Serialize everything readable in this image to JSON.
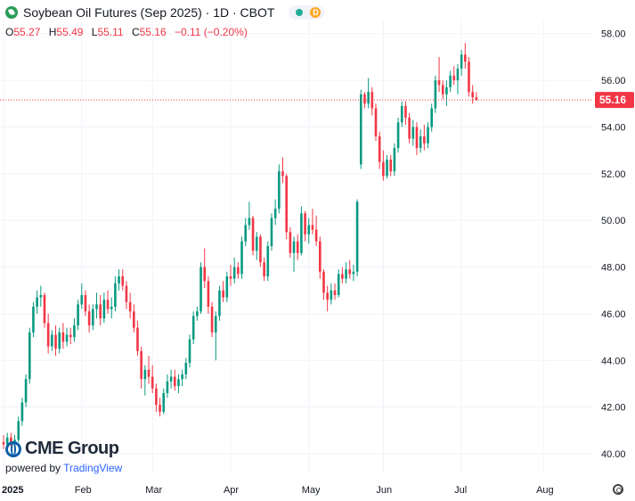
{
  "header": {
    "title": "Soybean Oil Futures (Sep 2025) · 1D · CBOT",
    "badge_d": "D",
    "ohlc": {
      "o_label": "O",
      "o_value": "55.27",
      "h_label": "H",
      "h_value": "55.49",
      "l_label": "L",
      "l_value": "55.11",
      "c_label": "C",
      "c_value": "55.16",
      "change": "−0.11 (−0.20%)"
    }
  },
  "branding": {
    "logo_text": "CME Group",
    "powered_prefix": "powered by ",
    "powered_name": "TradingView"
  },
  "colors": {
    "up": "#089981",
    "down": "#f23645",
    "last_price": "#f23645",
    "text": "#131722"
  },
  "chart_data": {
    "type": "candlestick",
    "y_range": [
      39.2,
      58.6
    ],
    "y_ticks": [
      40,
      42,
      44,
      46,
      48,
      50,
      52,
      54,
      56,
      58
    ],
    "y_tick_labels": [
      "40.00",
      "42.00",
      "44.00",
      "46.00",
      "48.00",
      "50.00",
      "52.00",
      "54.00",
      "56.00",
      "58.00"
    ],
    "x_labels": [
      {
        "label": "2025",
        "index": 0,
        "bold": true
      },
      {
        "label": "Feb",
        "index": 21
      },
      {
        "label": "Mar",
        "index": 40
      },
      {
        "label": "Apr",
        "index": 61
      },
      {
        "label": "May",
        "index": 82
      },
      {
        "label": "Jun",
        "index": 102
      },
      {
        "label": "Jul",
        "index": 123
      },
      {
        "label": "Aug",
        "index": 145
      }
    ],
    "last_price": 55.16,
    "last_price_label": "55.16",
    "candles": [
      [
        40.5,
        40.8,
        40.2,
        40.4
      ],
      [
        40.4,
        40.9,
        40.2,
        40.7
      ],
      [
        40.7,
        40.9,
        40.3,
        40.5
      ],
      [
        40.5,
        40.8,
        40.2,
        40.6
      ],
      [
        40.6,
        41.6,
        40.5,
        41.4
      ],
      [
        41.4,
        42.4,
        41.2,
        42.2
      ],
      [
        42.2,
        43.4,
        42.0,
        43.2
      ],
      [
        43.2,
        45.4,
        43.0,
        45.2
      ],
      [
        45.2,
        46.5,
        45.0,
        46.3
      ],
      [
        46.3,
        47.0,
        46.0,
        46.7
      ],
      [
        46.7,
        47.2,
        46.3,
        46.8
      ],
      [
        46.8,
        46.9,
        45.4,
        45.6
      ],
      [
        45.6,
        46.0,
        44.3,
        44.6
      ],
      [
        44.6,
        45.3,
        44.4,
        45.1
      ],
      [
        45.1,
        45.5,
        44.2,
        44.5
      ],
      [
        44.5,
        45.4,
        44.3,
        45.2
      ],
      [
        45.2,
        45.6,
        44.5,
        44.8
      ],
      [
        44.8,
        45.4,
        44.6,
        45.1
      ],
      [
        45.1,
        45.4,
        44.7,
        45.0
      ],
      [
        45.0,
        45.8,
        44.8,
        45.5
      ],
      [
        45.5,
        46.6,
        45.3,
        46.4
      ],
      [
        46.4,
        47.3,
        46.2,
        46.8
      ],
      [
        46.8,
        47.0,
        45.9,
        46.1
      ],
      [
        46.1,
        46.4,
        45.2,
        45.5
      ],
      [
        45.5,
        46.4,
        45.3,
        46.2
      ],
      [
        46.2,
        46.9,
        45.8,
        46.4
      ],
      [
        46.4,
        46.8,
        45.5,
        45.8
      ],
      [
        45.8,
        46.9,
        45.6,
        46.6
      ],
      [
        46.6,
        47.0,
        46.0,
        46.2
      ],
      [
        46.2,
        46.7,
        45.8,
        46.3
      ],
      [
        46.3,
        47.6,
        46.1,
        47.3
      ],
      [
        47.3,
        47.9,
        47.0,
        47.6
      ],
      [
        47.6,
        47.9,
        47.0,
        47.2
      ],
      [
        47.2,
        47.4,
        46.2,
        46.5
      ],
      [
        46.5,
        46.9,
        45.8,
        46.1
      ],
      [
        46.1,
        46.4,
        45.2,
        45.4
      ],
      [
        45.4,
        45.7,
        44.2,
        44.4
      ],
      [
        44.4,
        44.6,
        42.8,
        43.2
      ],
      [
        43.2,
        43.8,
        42.5,
        43.6
      ],
      [
        43.6,
        44.2,
        43.0,
        43.3
      ],
      [
        43.3,
        43.8,
        42.6,
        42.8
      ],
      [
        42.8,
        43.0,
        41.8,
        42.1
      ],
      [
        42.1,
        42.4,
        41.6,
        41.8
      ],
      [
        41.8,
        42.8,
        41.7,
        42.6
      ],
      [
        42.6,
        43.4,
        42.4,
        43.1
      ],
      [
        43.1,
        43.6,
        42.8,
        43.3
      ],
      [
        43.3,
        43.6,
        42.7,
        42.9
      ],
      [
        42.9,
        43.4,
        42.6,
        43.2
      ],
      [
        43.2,
        43.6,
        42.9,
        43.4
      ],
      [
        43.4,
        44.1,
        43.2,
        43.9
      ],
      [
        43.9,
        45.1,
        43.7,
        44.9
      ],
      [
        44.9,
        46.1,
        44.7,
        45.9
      ],
      [
        45.9,
        46.3,
        45.7,
        46.1
      ],
      [
        46.1,
        48.2,
        46.0,
        48.0
      ],
      [
        48.0,
        48.8,
        47.1,
        47.4
      ],
      [
        47.4,
        47.6,
        46.0,
        46.3
      ],
      [
        46.3,
        46.5,
        45.0,
        45.2
      ],
      [
        45.2,
        46.1,
        44.0,
        45.9
      ],
      [
        45.9,
        47.2,
        45.7,
        47.0
      ],
      [
        47.0,
        47.4,
        46.5,
        46.7
      ],
      [
        46.7,
        47.8,
        46.5,
        47.6
      ],
      [
        47.6,
        48.1,
        47.2,
        47.5
      ],
      [
        47.5,
        48.4,
        47.3,
        48.0
      ],
      [
        48.0,
        48.2,
        47.5,
        47.7
      ],
      [
        47.7,
        49.3,
        47.5,
        49.1
      ],
      [
        49.1,
        50.1,
        48.9,
        49.8
      ],
      [
        49.8,
        50.8,
        49.6,
        50.1
      ],
      [
        50.1,
        50.2,
        48.5,
        48.7
      ],
      [
        48.7,
        49.5,
        48.3,
        49.3
      ],
      [
        49.3,
        49.4,
        48.0,
        48.2
      ],
      [
        48.2,
        48.4,
        47.4,
        47.6
      ],
      [
        47.6,
        49.1,
        47.4,
        48.9
      ],
      [
        48.9,
        50.3,
        48.7,
        50.1
      ],
      [
        50.1,
        50.9,
        49.8,
        50.5
      ],
      [
        50.5,
        52.4,
        50.3,
        52.1
      ],
      [
        52.1,
        52.7,
        51.6,
        51.9
      ],
      [
        51.9,
        52.0,
        49.2,
        49.5
      ],
      [
        49.5,
        49.7,
        48.4,
        48.6
      ],
      [
        48.6,
        49.3,
        47.8,
        49.1
      ],
      [
        49.1,
        49.4,
        48.3,
        48.6
      ],
      [
        48.6,
        50.6,
        48.5,
        50.3
      ],
      [
        50.3,
        50.4,
        49.1,
        49.4
      ],
      [
        49.4,
        50.1,
        49.0,
        49.8
      ],
      [
        49.8,
        50.5,
        49.4,
        49.6
      ],
      [
        49.6,
        50.2,
        48.9,
        49.1
      ],
      [
        49.1,
        49.3,
        47.5,
        47.8
      ],
      [
        47.8,
        47.9,
        46.6,
        46.9
      ],
      [
        46.9,
        47.2,
        46.1,
        46.6
      ],
      [
        46.6,
        47.3,
        46.4,
        47.0
      ],
      [
        47.0,
        47.3,
        46.6,
        46.8
      ],
      [
        46.8,
        47.9,
        46.7,
        47.7
      ],
      [
        47.7,
        48.0,
        47.3,
        47.5
      ],
      [
        47.5,
        48.2,
        47.3,
        47.9
      ],
      [
        47.9,
        48.3,
        47.5,
        47.7
      ],
      [
        47.7,
        48.1,
        47.4,
        47.8
      ],
      [
        47.8,
        50.9,
        47.6,
        50.8
      ],
      [
        52.4,
        55.6,
        52.2,
        55.4
      ],
      [
        55.4,
        55.5,
        54.8,
        55.0
      ],
      [
        55.0,
        56.1,
        54.8,
        55.5
      ],
      [
        55.5,
        55.7,
        54.5,
        54.8
      ],
      [
        54.8,
        55.0,
        53.4,
        53.6
      ],
      [
        53.6,
        53.8,
        52.2,
        52.5
      ],
      [
        52.5,
        53.0,
        51.7,
        51.9
      ],
      [
        51.9,
        52.8,
        51.8,
        52.6
      ],
      [
        52.6,
        52.8,
        51.9,
        52.1
      ],
      [
        52.1,
        53.3,
        51.9,
        53.1
      ],
      [
        53.1,
        54.4,
        52.9,
        54.2
      ],
      [
        54.2,
        55.1,
        54.0,
        54.9
      ],
      [
        54.9,
        55.1,
        54.1,
        54.4
      ],
      [
        54.4,
        54.6,
        53.3,
        53.5
      ],
      [
        53.5,
        54.3,
        53.2,
        54.0
      ],
      [
        54.0,
        54.2,
        52.8,
        53.1
      ],
      [
        53.1,
        53.9,
        52.9,
        53.6
      ],
      [
        53.6,
        54.1,
        53.0,
        53.3
      ],
      [
        53.3,
        54.2,
        53.1,
        54.0
      ],
      [
        54.0,
        55.0,
        53.8,
        54.8
      ],
      [
        54.8,
        56.2,
        54.6,
        56.0
      ],
      [
        56.0,
        57.0,
        55.5,
        55.8
      ],
      [
        55.8,
        56.0,
        55.2,
        55.4
      ],
      [
        55.4,
        56.0,
        54.9,
        55.7
      ],
      [
        55.7,
        56.4,
        55.5,
        56.2
      ],
      [
        56.2,
        56.6,
        55.8,
        56.0
      ],
      [
        56.0,
        56.7,
        55.4,
        56.5
      ],
      [
        56.5,
        57.3,
        56.2,
        57.1
      ],
      [
        57.1,
        57.6,
        56.5,
        56.8
      ],
      [
        56.8,
        57.0,
        55.3,
        55.5
      ],
      [
        55.5,
        55.8,
        55.0,
        55.27
      ],
      [
        55.27,
        55.49,
        55.11,
        55.16
      ]
    ]
  }
}
